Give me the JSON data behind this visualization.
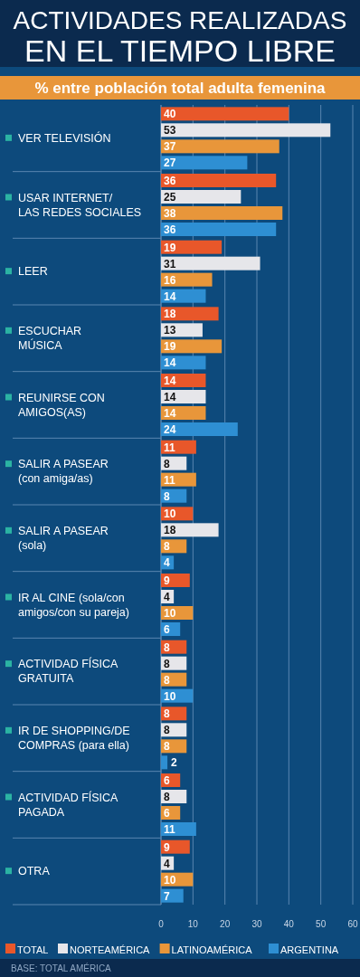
{
  "chart_data": {
    "type": "bar",
    "orientation": "horizontal",
    "title": "ACTIVIDADES REALIZADAS\nEN EL TIEMPO LIBRE",
    "subtitle": "% entre población total adulta femenina",
    "categories": [
      "VER TELEVISIÓN",
      "USAR INTERNET/\nLAS REDES SOCIALES",
      "LEER",
      "ESCUCHAR\nMÚSICA",
      "REUNIRSE CON\nAMIGOS(AS)",
      "SALIR A PASEAR\n(con amiga/as)",
      "SALIR A PASEAR\n(sola)",
      "IR AL CINE (sola/con\namigos/con su pareja)",
      "ACTIVIDAD FÍSICA\nGRATUITA",
      "IR DE SHOPPING/DE\nCOMPRAS (para ella)",
      "ACTIVIDAD FÍSICA\nPAGADA",
      "OTRA"
    ],
    "series": [
      {
        "name": "TOTAL",
        "color": "#e8572a",
        "values": [
          40,
          36,
          19,
          18,
          14,
          11,
          10,
          9,
          8,
          8,
          6,
          9
        ]
      },
      {
        "name": "NORTEAMÉRICA",
        "color": "#e6e6ea",
        "values": [
          53,
          25,
          31,
          13,
          14,
          8,
          18,
          4,
          8,
          8,
          8,
          4
        ]
      },
      {
        "name": "LATINOAMÉRICA",
        "color": "#e8963a",
        "values": [
          37,
          38,
          16,
          19,
          14,
          11,
          8,
          10,
          8,
          8,
          6,
          10
        ]
      },
      {
        "name": "ARGENTINA",
        "color": "#2e8fd3",
        "values": [
          27,
          36,
          14,
          14,
          24,
          8,
          4,
          6,
          10,
          2,
          11,
          7
        ]
      }
    ],
    "xlim": [
      0,
      60
    ],
    "xticks": [
      0,
      10,
      20,
      30,
      40,
      50,
      60
    ],
    "grid": "x",
    "legend": "bottom",
    "data_labels": true,
    "annotations": [
      "BASE: TOTAL AMÉRICA"
    ]
  }
}
